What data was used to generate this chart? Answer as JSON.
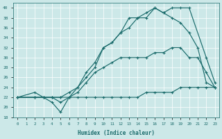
{
  "title": "",
  "xlabel": "Humidex (Indice chaleur)",
  "ylabel": "",
  "bg_color": "#cce8e8",
  "grid_color": "#ffffff",
  "line_color": "#1a6b6b",
  "xlim": [
    -0.5,
    23.5
  ],
  "ylim": [
    18,
    41
  ],
  "xticks": [
    0,
    1,
    2,
    3,
    4,
    5,
    6,
    7,
    8,
    9,
    10,
    11,
    12,
    13,
    14,
    15,
    16,
    17,
    18,
    19,
    20,
    21,
    22,
    23
  ],
  "yticks": [
    18,
    20,
    22,
    24,
    26,
    28,
    30,
    32,
    34,
    36,
    38,
    40
  ],
  "line1_x": [
    0,
    2,
    3,
    4,
    5,
    6,
    7,
    8,
    9,
    10,
    11,
    12,
    13,
    14,
    15,
    16,
    17,
    18,
    19,
    20,
    22,
    23
  ],
  "line1_y": [
    22,
    22,
    22,
    22,
    22,
    23,
    24,
    26,
    28,
    32,
    33,
    35,
    38,
    38,
    38,
    40,
    39,
    40,
    40,
    40,
    30,
    25
  ],
  "line2_x": [
    0,
    2,
    3,
    4,
    5,
    6,
    7,
    8,
    9,
    10,
    11,
    12,
    13,
    14,
    15,
    16,
    17,
    18,
    19,
    20,
    21,
    22,
    23
  ],
  "line2_y": [
    22,
    23,
    22,
    22,
    21,
    22,
    24,
    27,
    29,
    32,
    33,
    35,
    36,
    38,
    39,
    40,
    39,
    38,
    37,
    35,
    32,
    25,
    24
  ],
  "line3_x": [
    0,
    2,
    3,
    4,
    5,
    6,
    7,
    8,
    9,
    10,
    11,
    12,
    13,
    14,
    15,
    16,
    17,
    18,
    19,
    20,
    21,
    22,
    23
  ],
  "line3_y": [
    22,
    22,
    22,
    21,
    19,
    22,
    23,
    25,
    27,
    28,
    29,
    30,
    30,
    30,
    30,
    31,
    31,
    32,
    32,
    30,
    30,
    27,
    24
  ],
  "line4_x": [
    0,
    2,
    3,
    4,
    5,
    6,
    7,
    8,
    9,
    10,
    11,
    12,
    13,
    14,
    15,
    16,
    17,
    18,
    19,
    20,
    21,
    22,
    23
  ],
  "line4_y": [
    22,
    22,
    22,
    22,
    22,
    22,
    22,
    22,
    22,
    22,
    22,
    22,
    22,
    22,
    23,
    23,
    23,
    23,
    24,
    24,
    24,
    24,
    24
  ]
}
